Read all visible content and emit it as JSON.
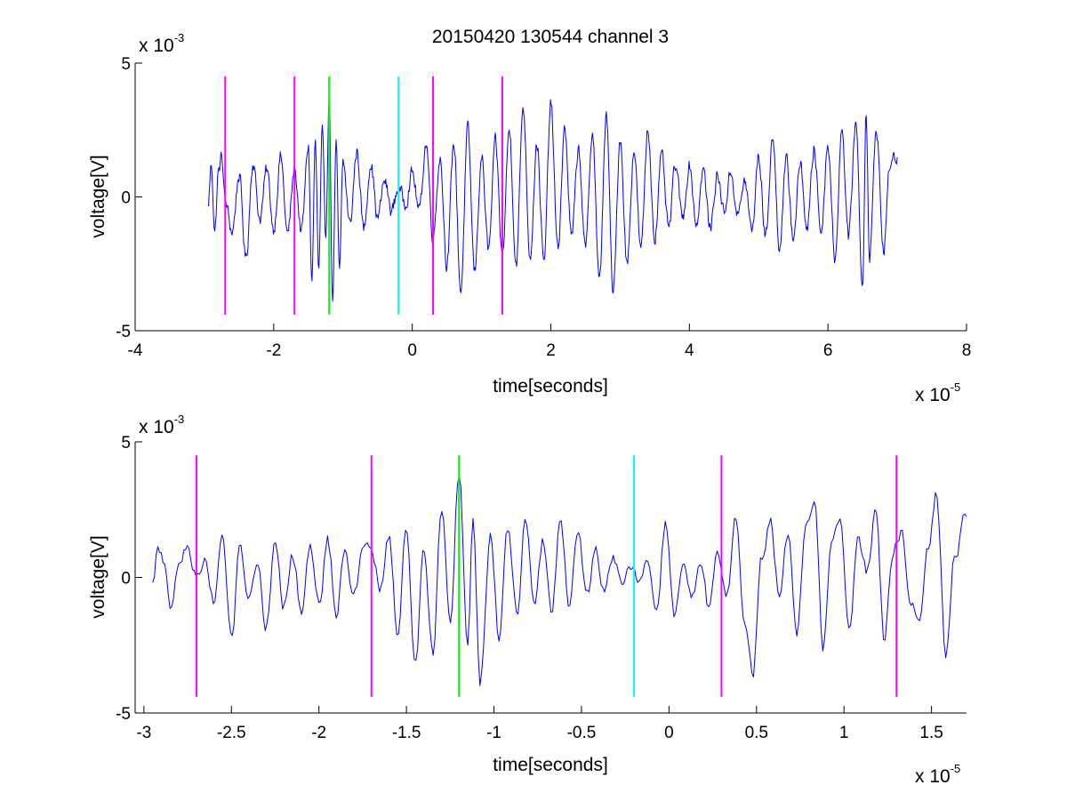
{
  "title": "20150420 130544 channel 3",
  "chart_data": [
    {
      "type": "line",
      "title": "20150420 130544 channel 3",
      "xlabel": "time[seconds]",
      "ylabel": "voltage[V]",
      "x_exponent": "x 10",
      "x_exponent_power": "-5",
      "y_exponent": "x 10",
      "y_exponent_power": "-3",
      "xlim": [
        -4,
        8
      ],
      "ylim": [
        -5,
        5
      ],
      "xticks": [
        -4,
        -2,
        0,
        2,
        4,
        6,
        8
      ],
      "xtick_labels": [
        "-4",
        "-2",
        "0",
        "2",
        "4",
        "6",
        "8"
      ],
      "yticks": [
        -5,
        0,
        5
      ],
      "ytick_labels": [
        "-5",
        "0",
        "5"
      ],
      "grid": false,
      "signal": {
        "color": "#0000ff",
        "x_start": -2.95,
        "x_end": 7.0,
        "anchors": [
          [
            -2.95,
            -0.4
          ],
          [
            -2.9,
            1.2
          ],
          [
            -2.85,
            -1.3
          ],
          [
            -2.8,
            0.9
          ],
          [
            -2.75,
            1.5
          ],
          [
            -2.7,
            -0.2
          ],
          [
            -2.6,
            -1.3
          ],
          [
            -2.5,
            0.8
          ],
          [
            -2.4,
            -2.3
          ],
          [
            -2.3,
            1.3
          ],
          [
            -2.2,
            -0.8
          ],
          [
            -2.1,
            1.0
          ],
          [
            -2.0,
            -1.2
          ],
          [
            -1.9,
            1.5
          ],
          [
            -1.8,
            -1.4
          ],
          [
            -1.7,
            1.0
          ],
          [
            -1.6,
            -1.3
          ],
          [
            -1.5,
            1.9
          ],
          [
            -1.45,
            -3.2
          ],
          [
            -1.4,
            2.0
          ],
          [
            -1.35,
            -2.8
          ],
          [
            -1.3,
            2.4
          ],
          [
            -1.25,
            -1.5
          ],
          [
            -1.2,
            3.8
          ],
          [
            -1.15,
            -3.9
          ],
          [
            -1.1,
            1.9
          ],
          [
            -1.05,
            -2.8
          ],
          [
            -1.0,
            1.3
          ],
          [
            -0.9,
            -1.0
          ],
          [
            -0.8,
            1.7
          ],
          [
            -0.7,
            -1.2
          ],
          [
            -0.6,
            1.3
          ],
          [
            -0.5,
            -0.8
          ],
          [
            -0.4,
            0.6
          ],
          [
            -0.3,
            -0.5
          ],
          [
            -0.2,
            0.3
          ],
          [
            -0.1,
            -0.2
          ],
          [
            0.0,
            0.9
          ],
          [
            0.1,
            -0.5
          ],
          [
            0.2,
            2.0
          ],
          [
            0.3,
            -1.5
          ],
          [
            0.4,
            1.5
          ],
          [
            0.5,
            -2.5
          ],
          [
            0.6,
            2.0
          ],
          [
            0.7,
            -3.5
          ],
          [
            0.8,
            2.5
          ],
          [
            0.9,
            -2.8
          ],
          [
            1.0,
            1.5
          ],
          [
            1.1,
            -2.0
          ],
          [
            1.2,
            2.0
          ],
          [
            1.3,
            -2.2
          ],
          [
            1.4,
            2.5
          ],
          [
            1.5,
            -2.5
          ],
          [
            1.6,
            3.4
          ],
          [
            1.7,
            -2.2
          ],
          [
            1.8,
            2.0
          ],
          [
            1.9,
            -2.5
          ],
          [
            2.0,
            3.5
          ],
          [
            2.1,
            -2.0
          ],
          [
            2.2,
            2.5
          ],
          [
            2.3,
            -1.5
          ],
          [
            2.4,
            1.8
          ],
          [
            2.5,
            -2.0
          ],
          [
            2.6,
            2.5
          ],
          [
            2.7,
            -3.2
          ],
          [
            2.8,
            3.0
          ],
          [
            2.9,
            -3.6
          ],
          [
            3.0,
            2.2
          ],
          [
            3.1,
            -2.5
          ],
          [
            3.2,
            1.8
          ],
          [
            3.3,
            -2.0
          ],
          [
            3.4,
            2.5
          ],
          [
            3.5,
            -1.5
          ],
          [
            3.6,
            1.5
          ],
          [
            3.7,
            -1.2
          ],
          [
            3.8,
            1.2
          ],
          [
            3.9,
            -0.8
          ],
          [
            4.0,
            1.2
          ],
          [
            4.1,
            -1.0
          ],
          [
            4.2,
            1.0
          ],
          [
            4.3,
            -1.2
          ],
          [
            4.4,
            0.8
          ],
          [
            4.5,
            -0.5
          ],
          [
            4.6,
            0.9
          ],
          [
            4.7,
            -0.7
          ],
          [
            4.8,
            0.6
          ],
          [
            4.9,
            -1.3
          ],
          [
            5.0,
            1.5
          ],
          [
            5.1,
            -1.5
          ],
          [
            5.2,
            2.2
          ],
          [
            5.3,
            -1.8
          ],
          [
            5.4,
            1.3
          ],
          [
            5.5,
            -1.5
          ],
          [
            5.6,
            1.2
          ],
          [
            5.7,
            -1.2
          ],
          [
            5.8,
            1.8
          ],
          [
            5.9,
            -1.3
          ],
          [
            6.0,
            2.0
          ],
          [
            6.1,
            -2.3
          ],
          [
            6.2,
            2.5
          ],
          [
            6.3,
            -1.5
          ],
          [
            6.4,
            2.8
          ],
          [
            6.5,
            -3.3
          ],
          [
            6.55,
            3.3
          ],
          [
            6.6,
            -2.3
          ],
          [
            6.7,
            2.6
          ],
          [
            6.8,
            -2.0
          ],
          [
            6.9,
            1.3
          ],
          [
            7.0,
            1.5
          ]
        ]
      },
      "markers": [
        {
          "x": -2.7,
          "color": "#ff00ff"
        },
        {
          "x": -1.7,
          "color": "#ff00ff"
        },
        {
          "x": -1.2,
          "color": "#00ff00"
        },
        {
          "x": -0.2,
          "color": "#00ffff"
        },
        {
          "x": 0.3,
          "color": "#ff00ff"
        },
        {
          "x": 1.3,
          "color": "#ff00ff"
        }
      ],
      "marker_yrange": [
        -4.4,
        4.5
      ]
    },
    {
      "type": "line",
      "title": "",
      "xlabel": "time[seconds]",
      "ylabel": "voltage[V]",
      "x_exponent": "x 10",
      "x_exponent_power": "-5",
      "y_exponent": "x 10",
      "y_exponent_power": "-3",
      "xlim": [
        -3.05,
        1.7
      ],
      "ylim": [
        -5,
        5
      ],
      "xticks": [
        -3,
        -2.5,
        -2,
        -1.5,
        -1,
        -0.5,
        0,
        0.5,
        1,
        1.5
      ],
      "xtick_labels": [
        "-3",
        "-2.5",
        "-2",
        "-1.5",
        "-1",
        "-0.5",
        "0",
        "0.5",
        "1",
        "1.5"
      ],
      "yticks": [
        -5,
        0,
        5
      ],
      "ytick_labels": [
        "-5",
        "0",
        "5"
      ],
      "grid": false,
      "signal": {
        "color": "#0000ff",
        "x_start": -2.95,
        "x_end": 1.7,
        "anchors": [
          [
            -2.95,
            -0.3
          ],
          [
            -2.92,
            1.3
          ],
          [
            -2.88,
            0.4
          ],
          [
            -2.85,
            -1.3
          ],
          [
            -2.8,
            0.5
          ],
          [
            -2.75,
            1.2
          ],
          [
            -2.7,
            0.0
          ],
          [
            -2.65,
            0.7
          ],
          [
            -2.6,
            -1.0
          ],
          [
            -2.55,
            1.5
          ],
          [
            -2.5,
            -2.4
          ],
          [
            -2.45,
            1.3
          ],
          [
            -2.4,
            -0.8
          ],
          [
            -2.35,
            0.6
          ],
          [
            -2.3,
            -1.8
          ],
          [
            -2.25,
            1.5
          ],
          [
            -2.2,
            -1.0
          ],
          [
            -2.15,
            0.8
          ],
          [
            -2.1,
            -1.2
          ],
          [
            -2.05,
            1.2
          ],
          [
            -2.0,
            -1.0
          ],
          [
            -1.95,
            1.4
          ],
          [
            -1.9,
            -1.3
          ],
          [
            -1.85,
            1.2
          ],
          [
            -1.8,
            -0.8
          ],
          [
            -1.75,
            0.9
          ],
          [
            -1.7,
            1.1
          ],
          [
            -1.65,
            -0.5
          ],
          [
            -1.6,
            1.5
          ],
          [
            -1.55,
            -2.0
          ],
          [
            -1.5,
            1.8
          ],
          [
            -1.45,
            -3.2
          ],
          [
            -1.4,
            0.9
          ],
          [
            -1.35,
            -2.8
          ],
          [
            -1.3,
            2.5
          ],
          [
            -1.25,
            -1.5
          ],
          [
            -1.2,
            4.0
          ],
          [
            -1.15,
            -2.5
          ],
          [
            -1.12,
            2.3
          ],
          [
            -1.08,
            -3.9
          ],
          [
            -1.02,
            1.7
          ],
          [
            -0.97,
            -2.2
          ],
          [
            -0.92,
            1.8
          ],
          [
            -0.87,
            -1.4
          ],
          [
            -0.82,
            2.3
          ],
          [
            -0.77,
            -1.2
          ],
          [
            -0.72,
            1.4
          ],
          [
            -0.67,
            -1.3
          ],
          [
            -0.62,
            2.2
          ],
          [
            -0.57,
            -1.0
          ],
          [
            -0.52,
            1.8
          ],
          [
            -0.47,
            -0.8
          ],
          [
            -0.42,
            1.1
          ],
          [
            -0.37,
            -0.6
          ],
          [
            -0.32,
            0.9
          ],
          [
            -0.27,
            -0.4
          ],
          [
            -0.22,
            0.5
          ],
          [
            -0.17,
            -0.2
          ],
          [
            -0.12,
            0.6
          ],
          [
            -0.07,
            -1.2
          ],
          [
            -0.02,
            2.0
          ],
          [
            0.03,
            -1.5
          ],
          [
            0.08,
            0.5
          ],
          [
            0.13,
            -0.9
          ],
          [
            0.18,
            0.4
          ],
          [
            0.23,
            -1.2
          ],
          [
            0.28,
            0.8
          ],
          [
            0.33,
            -0.7
          ],
          [
            0.38,
            2.1
          ],
          [
            0.43,
            -1.4
          ],
          [
            0.48,
            -3.5
          ],
          [
            0.53,
            0.7
          ],
          [
            0.58,
            2.0
          ],
          [
            0.63,
            -0.8
          ],
          [
            0.68,
            1.5
          ],
          [
            0.73,
            -2.3
          ],
          [
            0.78,
            1.8
          ],
          [
            0.83,
            3.0
          ],
          [
            0.88,
            -2.5
          ],
          [
            0.93,
            1.3
          ],
          [
            0.98,
            2.1
          ],
          [
            1.03,
            -2.0
          ],
          [
            1.08,
            1.7
          ],
          [
            1.13,
            0.2
          ],
          [
            1.18,
            2.5
          ],
          [
            1.23,
            -2.3
          ],
          [
            1.28,
            1.0
          ],
          [
            1.33,
            1.7
          ],
          [
            1.38,
            -0.8
          ],
          [
            1.43,
            -1.5
          ],
          [
            1.48,
            1.1
          ],
          [
            1.53,
            3.1
          ],
          [
            1.58,
            -2.8
          ],
          [
            1.63,
            0.8
          ],
          [
            1.7,
            2.3
          ]
        ]
      },
      "markers": [
        {
          "x": -2.7,
          "color": "#ff00ff"
        },
        {
          "x": -1.7,
          "color": "#ff00ff"
        },
        {
          "x": -1.2,
          "color": "#00ff00"
        },
        {
          "x": -0.2,
          "color": "#00ffff"
        },
        {
          "x": 0.3,
          "color": "#ff00ff"
        },
        {
          "x": 1.3,
          "color": "#ff00ff"
        }
      ],
      "marker_yrange": [
        -4.4,
        4.5
      ]
    }
  ]
}
